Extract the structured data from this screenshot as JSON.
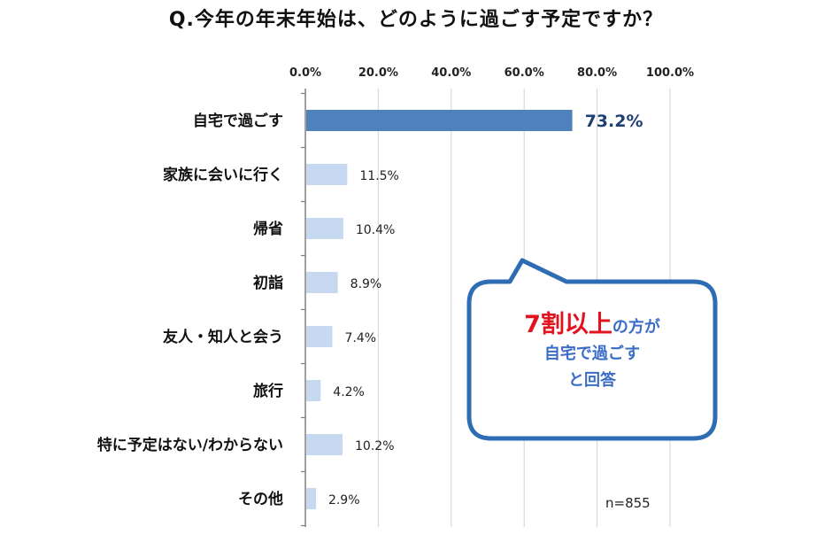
{
  "title": "Q.今年の年末年始は、どのように過ごす予定ですか？",
  "n_label": "n=855",
  "callout": {
    "highlight": "7割以上",
    "line1_rest": "の方が",
    "line2": "自宅で過ごす",
    "line3": "と回答"
  },
  "colors": {
    "highlight_bar": "#4f81bd",
    "bar": "#c6d9f1",
    "grid": "#d9d9d9",
    "callout_border": "#2e6db4",
    "highlight_label": "#1f3f73",
    "callout_red": "#e0141e"
  },
  "chart_data": {
    "type": "bar",
    "orientation": "horizontal",
    "categories": [
      "自宅で過ごす",
      "家族に会いに行く",
      "帰省",
      "初詣",
      "友人・知人と会う",
      "旅行",
      "特に予定はない/わからない",
      "その他"
    ],
    "values": [
      73.2,
      11.5,
      10.4,
      8.9,
      7.4,
      4.2,
      10.2,
      2.9
    ],
    "value_labels": [
      "73.2%",
      "11.5%",
      "10.4%",
      "8.9%",
      "7.4%",
      "4.2%",
      "10.2%",
      "2.9%"
    ],
    "highlight_index": 0,
    "ticks": [
      0,
      20,
      40,
      60,
      80,
      100
    ],
    "tick_labels": [
      "0.0%",
      "20.0%",
      "40.0%",
      "60.0%",
      "80.0%",
      "100.0%"
    ],
    "xlim": [
      0,
      100
    ],
    "axis_position": "top",
    "grid": true
  }
}
